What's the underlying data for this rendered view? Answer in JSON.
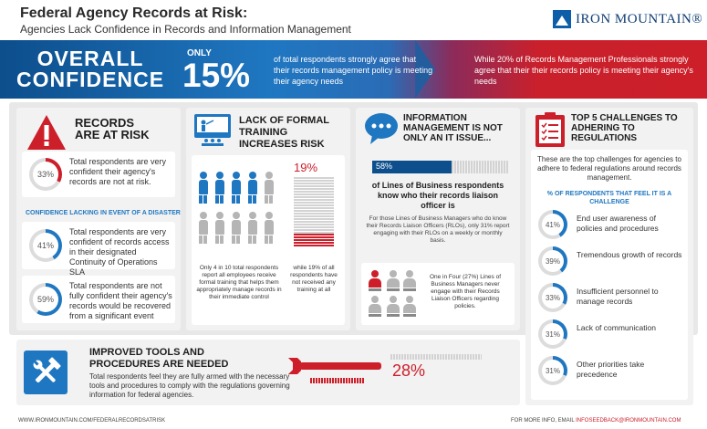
{
  "header": {
    "title": "Federal Agency Records at Risk:",
    "subtitle": "Agencies Lack Confidence in Records and Information Management",
    "logo_text": "IRON MOUNTAIN®"
  },
  "banner": {
    "overall_line1": "OVERALL",
    "overall_line2": "CONFIDENCE",
    "only": "ONLY",
    "percent": "15%",
    "text1": "of total respondents strongly agree that their records management policy is meeting their agency needs",
    "text2": "While 20% of Records Management Professionals strongly agree that their their records policy is meeting their agency's needs"
  },
  "records": {
    "title_line1": "RECORDS",
    "title_line2": "ARE AT RISK",
    "stat1_pct": "33%",
    "stat1_text": "Total respondents are very confident their agency's records are not at risk.",
    "disaster_label": "CONFIDENCE LACKING IN EVENT OF A DISASTER",
    "stat2_pct": "41%",
    "stat2_text": "Total respondents are very confident of records access in their designated Continuity of Operations SLA",
    "stat3_pct": "59%",
    "stat3_text": "Total respondents are not fully confident their agency's records would be recovered from a significant event"
  },
  "training": {
    "title": "LACK OF FORMAL TRAINING INCREASES RISK",
    "pct": "19%",
    "caption_left": "Only 4 in 10 total respondents report all employees receive formal training that helps them appropriately manage records in their immediate control",
    "caption_right": "while 19% of all respondents have not received any training at all"
  },
  "info_mgmt": {
    "title": "INFORMATION MANAGEMENT IS NOT ONLY AN IT ISSUE...",
    "bar_pct": "58%",
    "bar_value": 0.58,
    "main_text": "of Lines of Business respondents know who their records liaison officer is",
    "sub_text": "For those Lines of Business Managers who do know their Records Liaison Officers (RLOs), only 31% report engaging with their RLOs on a weekly or monthly basis.",
    "one_in_four": "One in Four (27%) Lines of Business Managers never engage with their Records Liaison Officers regarding policies."
  },
  "challenges": {
    "title": "TOP 5 CHALLENGES TO ADHERING TO REGULATIONS",
    "intro": "These are the top challenges for agencies to adhere to federal regulations around records management.",
    "subhead": "% OF RESPONDENTS THAT FEEL IT IS A CHALLENGE",
    "items": [
      {
        "pct": "41%",
        "label": "End user awareness of policies and procedures"
      },
      {
        "pct": "39%",
        "label": "Tremendous growth of records"
      },
      {
        "pct": "33%",
        "label": "Insufficient personnel to manage records"
      },
      {
        "pct": "31%",
        "label": "Lack of communication"
      },
      {
        "pct": "31%",
        "label": "Other priorities take precedence"
      }
    ]
  },
  "tools": {
    "title": "IMPROVED TOOLS AND PROCEDURES ARE NEEDED",
    "text": "Total respondents feel they are fully armed with the necessary tools and procedures to comply with the regulations governing information for federal agencies.",
    "pct": "28%"
  },
  "footer": {
    "left": "WWW.IRONMOUNTAIN.COM/FEDERALRECORDSATRISK",
    "right_prefix": "FOR MORE INFO, EMAIL",
    "right_email": "INFOSEEDBACK@IRONMOUNTAIN.COM"
  },
  "colors": {
    "blue": "#1f77c1",
    "red": "#cc1f2a",
    "dark_blue": "#0d4e8c"
  }
}
